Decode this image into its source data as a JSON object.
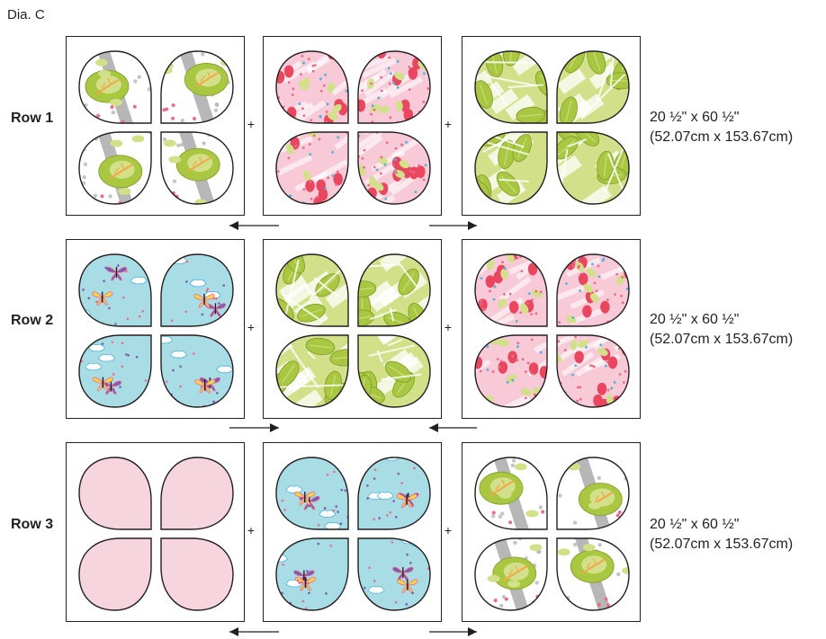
{
  "diagram_title": "Dia. C",
  "plus_symbol": "+",
  "colors": {
    "outline": "#231f20",
    "green_light": "#d2e08a",
    "green": "#a9c741",
    "white": "#ffffff",
    "gray": "#b7b7b7",
    "orange": "#f6a64a",
    "pink_light": "#f8c9d6",
    "pink_solid": "#f7d5de",
    "pink_dot": "#ee6a8b",
    "red": "#e8475f",
    "blue_light": "#a9dde6",
    "purple": "#7d5cb3",
    "yellow": "#f7d44c",
    "sky": "#4fb3d9"
  },
  "rows": [
    {
      "label": "Row 1",
      "dim_in": "20 ½\" x 60 ½\"",
      "dim_cm": "(52.07cm x 153.67cm)",
      "blocks": [
        "forest",
        "pink_floral",
        "leaf_green"
      ],
      "arrows": [
        "left",
        "right"
      ]
    },
    {
      "label": "Row 2",
      "dim_in": "20 ½\" x 60 ½\"",
      "dim_cm": "(52.07cm x 153.67cm)",
      "blocks": [
        "butterfly",
        "leaf_green",
        "pink_floral"
      ],
      "arrows": [
        "right",
        "left"
      ]
    },
    {
      "label": "Row 3",
      "dim_in": "20 ½\" x 60 ½\"",
      "dim_cm": "(52.07cm x 153.67cm)",
      "blocks": [
        "solid_pink",
        "butterfly",
        "forest"
      ],
      "arrows": [
        "left",
        "right"
      ]
    }
  ]
}
